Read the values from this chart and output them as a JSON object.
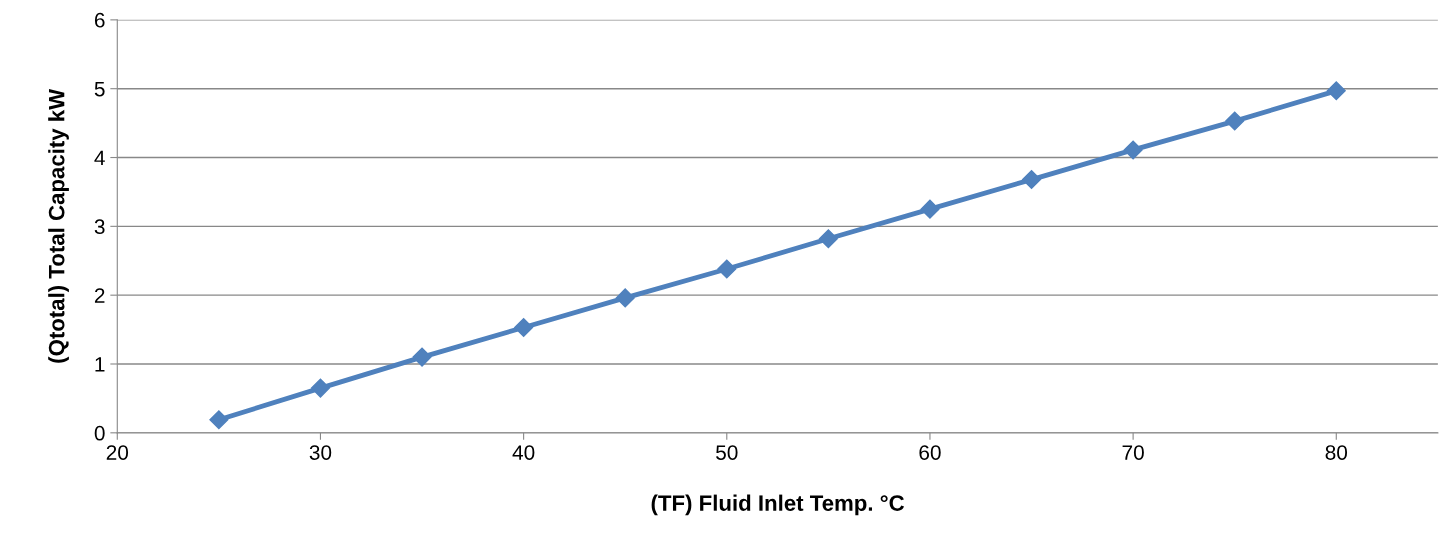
{
  "chart_data": {
    "type": "line",
    "xlabel": "(TF) Fluid Inlet Temp. °C",
    "ylabel": "(Qtotal) Total Capacity kW",
    "x": [
      25,
      30,
      35,
      40,
      45,
      50,
      55,
      60,
      65,
      70,
      75,
      80
    ],
    "series": [
      {
        "color": "#4f81bd",
        "values": [
          0.19,
          0.65,
          1.1,
          1.53,
          1.96,
          2.38,
          2.82,
          3.25,
          3.68,
          4.11,
          4.53,
          4.97
        ]
      }
    ],
    "xlim": [
      20,
      85
    ],
    "xticks": [
      20,
      30,
      40,
      50,
      60,
      70,
      80
    ],
    "ylim": [
      0,
      6
    ],
    "yticks": [
      0,
      1,
      2,
      3,
      4,
      5,
      6
    ],
    "grid": "y",
    "marker": "diamond",
    "line_style": "solid",
    "legend": false
  }
}
